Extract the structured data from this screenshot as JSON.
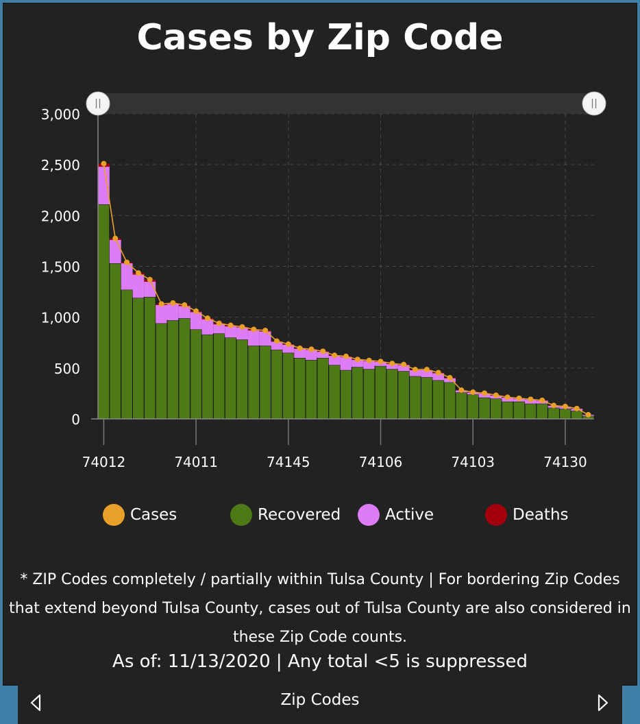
{
  "title": "Cases by Zip Code",
  "colors": {
    "cases": "#e8a02a",
    "recovered": "#4d7a16",
    "active": "#dd7cf5",
    "deaths": "#a3000e",
    "background": "#222222"
  },
  "legend": {
    "cases": "Cases",
    "recovered": "Recovered",
    "active": "Active",
    "deaths": "Deaths"
  },
  "note": "* ZIP Codes completely  / partially within Tulsa County | For bordering Zip Codes that extend beyond Tulsa County, cases out of Tulsa County are  also considered in these Zip Code counts.",
  "as_of": "As of: 11/13/2020 | Any total <5 is suppressed",
  "nav": {
    "label": "Zip Codes",
    "prev_icon": "triangle-left-icon",
    "next_icon": "triangle-right-icon"
  },
  "scrollbar": {
    "left_handle_icon": "drag-handle-icon",
    "right_handle_icon": "drag-handle-icon"
  },
  "chart_data": {
    "type": "bar",
    "stacked": true,
    "ylim": [
      0,
      3000
    ],
    "yticks": [
      "0",
      "500",
      "1,000",
      "1,500",
      "2,000",
      "2,500",
      "3,000"
    ],
    "ytick_values": [
      0,
      500,
      1000,
      1500,
      2000,
      2500,
      3000
    ],
    "xtick_labels": [
      "74012",
      "74011",
      "74145",
      "74106",
      "74103",
      "74130"
    ],
    "xtick_indices": [
      0,
      8,
      16,
      24,
      32,
      40
    ],
    "grid": true,
    "legend_position": "bottom",
    "recovered": [
      2110,
      1530,
      1270,
      1190,
      1200,
      940,
      970,
      990,
      880,
      830,
      840,
      800,
      780,
      720,
      720,
      680,
      650,
      600,
      580,
      600,
      530,
      480,
      510,
      490,
      520,
      490,
      470,
      420,
      410,
      380,
      360,
      260,
      240,
      210,
      200,
      170,
      170,
      150,
      150,
      110,
      100,
      80,
      30
    ],
    "active": [
      370,
      230,
      260,
      230,
      150,
      180,
      160,
      120,
      170,
      150,
      90,
      110,
      120,
      150,
      140,
      80,
      80,
      90,
      100,
      60,
      90,
      130,
      70,
      80,
      40,
      50,
      60,
      60,
      70,
      70,
      40,
      20,
      20,
      40,
      30,
      40,
      30,
      40,
      30,
      20,
      20,
      20,
      10
    ],
    "deaths": [
      30,
      15,
      10,
      15,
      20,
      10,
      10,
      10,
      10,
      10,
      10,
      10,
      5,
      10,
      10,
      5,
      5,
      5,
      5,
      5,
      5,
      5,
      5,
      5,
      5,
      5,
      5,
      5,
      5,
      5,
      5,
      3,
      3,
      3,
      3,
      3,
      3,
      3,
      3,
      2,
      2,
      2,
      1
    ],
    "cases": [
      2510,
      1775,
      1540,
      1435,
      1370,
      1130,
      1140,
      1120,
      1060,
      990,
      940,
      920,
      905,
      880,
      870,
      765,
      735,
      695,
      685,
      665,
      625,
      615,
      585,
      575,
      565,
      545,
      535,
      485,
      485,
      455,
      405,
      283,
      263,
      253,
      233,
      213,
      203,
      193,
      183,
      132,
      122,
      102,
      41
    ]
  }
}
